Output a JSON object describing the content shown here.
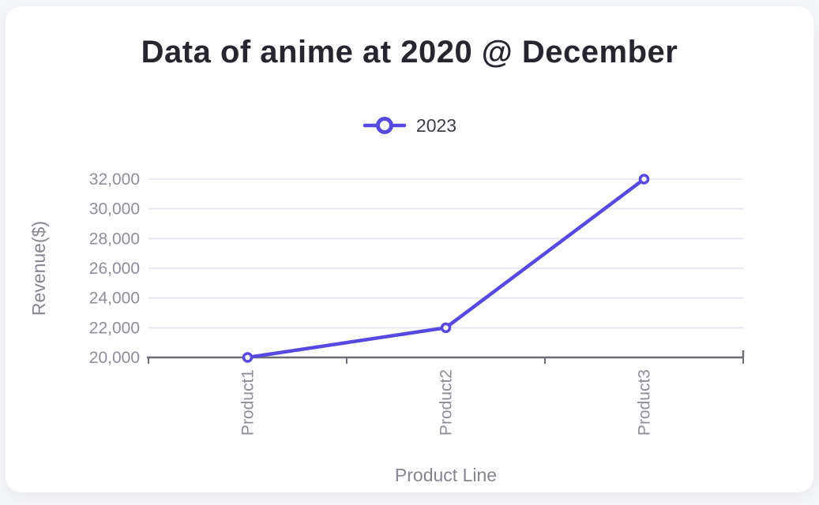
{
  "page": {
    "background_color": "#f5f6f9",
    "card_background_color": "#ffffff"
  },
  "chart_data": {
    "type": "line",
    "title": "Data of anime at 2020 @ December",
    "xlabel": "Product Line",
    "ylabel": "Revenue($)",
    "categories": [
      "Product1",
      "Product2",
      "Product3"
    ],
    "series": [
      {
        "name": "2023",
        "values": [
          20000,
          22000,
          32000
        ],
        "color": "#5748e0"
      }
    ],
    "ylim": [
      20000,
      32000
    ],
    "ytick_step": 2000,
    "ytick_labels": [
      "20,000",
      "22,000",
      "24,000",
      "26,000",
      "28,000",
      "30,000",
      "32,000"
    ],
    "grid": true,
    "legend_position": "top",
    "marker": "open-circle",
    "colors": {
      "grid": "#e6e8f3",
      "axis": "#6d6d77",
      "tick_label": "#8e8e98",
      "axis_title": "#85858f",
      "title": "#26262e",
      "legend_text": "#3d3d46"
    }
  }
}
